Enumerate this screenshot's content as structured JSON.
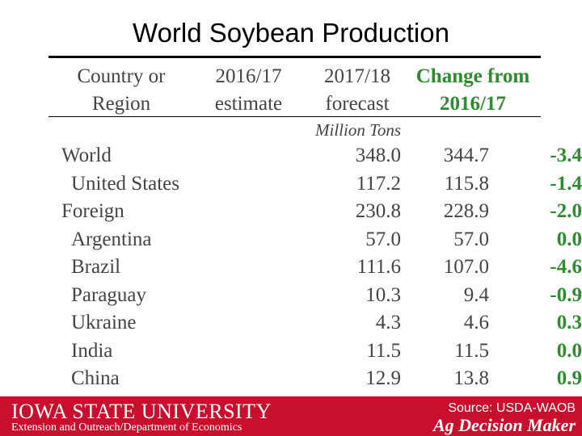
{
  "title": "World Soybean Production",
  "table": {
    "headers": {
      "col1": [
        "Country or",
        "Region"
      ],
      "col2": [
        "2016/17",
        "estimate"
      ],
      "col3": [
        "2017/18",
        "forecast"
      ],
      "col4": [
        "Change from",
        "2016/17"
      ]
    },
    "units": "Million Tons",
    "rows": [
      {
        "name": "World",
        "indent": 0,
        "est": "348.0",
        "fc": "344.7",
        "chg": "-3.4"
      },
      {
        "name": "United States",
        "indent": 1,
        "est": "117.2",
        "fc": "115.8",
        "chg": "-1.4"
      },
      {
        "name": "Foreign",
        "indent": 0,
        "est": "230.8",
        "fc": "228.9",
        "chg": "-2.0"
      },
      {
        "name": "Argentina",
        "indent": 1,
        "est": "57.0",
        "fc": "57.0",
        "chg": "0.0"
      },
      {
        "name": "Brazil",
        "indent": 1,
        "est": "111.6",
        "fc": "107.0",
        "chg": "-4.6"
      },
      {
        "name": "Paraguay",
        "indent": 1,
        "est": "10.3",
        "fc": "9.4",
        "chg": "-0.9"
      },
      {
        "name": "Ukraine",
        "indent": 1,
        "est": "4.3",
        "fc": "4.6",
        "chg": "0.3"
      },
      {
        "name": "India",
        "indent": 1,
        "est": "11.5",
        "fc": "11.5",
        "chg": "0.0"
      },
      {
        "name": "China",
        "indent": 1,
        "est": "12.9",
        "fc": "13.8",
        "chg": "0.9"
      }
    ]
  },
  "footer": {
    "university": "IOWA STATE UNIVERSITY",
    "department": "Extension and Outreach/Department of Economics",
    "source": "Source: USDA-WAOB",
    "brand": "Ag Decision Maker"
  },
  "colors": {
    "accent_red": "#c8102e",
    "change_green": "#2e8b2e"
  }
}
